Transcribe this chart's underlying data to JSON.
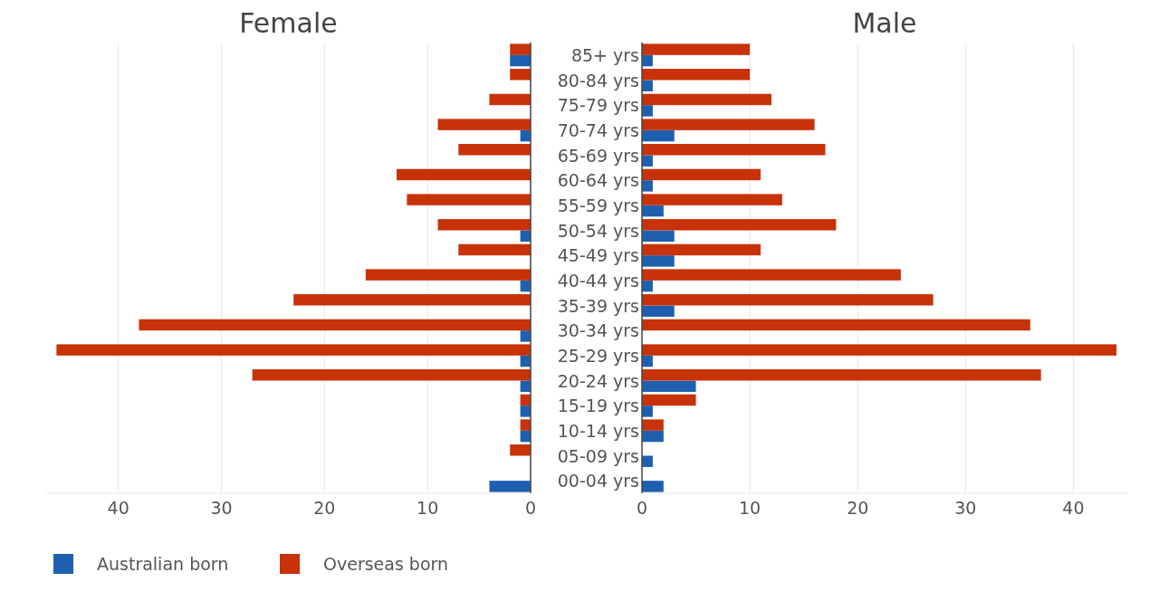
{
  "chart_data": [
    {
      "type": "bar",
      "orientation": "horizontal",
      "title": "Female",
      "categories": [
        "85+ yrs",
        "80-84 yrs",
        "75-79 yrs",
        "70-74 yrs",
        "65-69 yrs",
        "60-64 yrs",
        "55-59 yrs",
        "50-54 yrs",
        "45-49 yrs",
        "40-44 yrs",
        "35-39 yrs",
        "30-34 yrs",
        "25-29 yrs",
        "20-24 yrs",
        "15-19 yrs",
        "10-14 yrs",
        "05-09 yrs",
        "00-04 yrs"
      ],
      "series": [
        {
          "name": "Australian born",
          "color": "#1f5fb0",
          "values": [
            2,
            0,
            0,
            1,
            0,
            0,
            0,
            1,
            0,
            1,
            0,
            1,
            1,
            1,
            1,
            1,
            0,
            4
          ]
        },
        {
          "name": "Overseas born",
          "color": "#c83208",
          "values": [
            2,
            2,
            4,
            9,
            7,
            13,
            12,
            9,
            7,
            16,
            23,
            38,
            46,
            27,
            1,
            1,
            2,
            0
          ]
        }
      ],
      "xlim": [
        47,
        0
      ],
      "xticks": [
        40,
        30,
        20,
        10,
        0
      ],
      "grid": "x",
      "legend": "bottom"
    },
    {
      "type": "bar",
      "orientation": "horizontal",
      "title": "Male",
      "categories": [
        null,
        null,
        null,
        null,
        null,
        null,
        null,
        null,
        null,
        null,
        null,
        null,
        null,
        null,
        null,
        null,
        null,
        null
      ],
      "series": [
        {
          "color": "#1f5fb0",
          "values": [
            1,
            1,
            1,
            3,
            1,
            1,
            2,
            3,
            3,
            1,
            3,
            0,
            1,
            5,
            1,
            2,
            1,
            2
          ]
        },
        {
          "color": "#c83208",
          "values": [
            10,
            10,
            12,
            16,
            17,
            11,
            13,
            18,
            11,
            24,
            27,
            36,
            44,
            37,
            5,
            2,
            0,
            0
          ]
        }
      ],
      "xlim": [
        0,
        45
      ],
      "xticks": [
        0,
        10,
        20,
        30,
        40
      ],
      "grid": "x",
      "tick_labels": "x"
    }
  ]
}
